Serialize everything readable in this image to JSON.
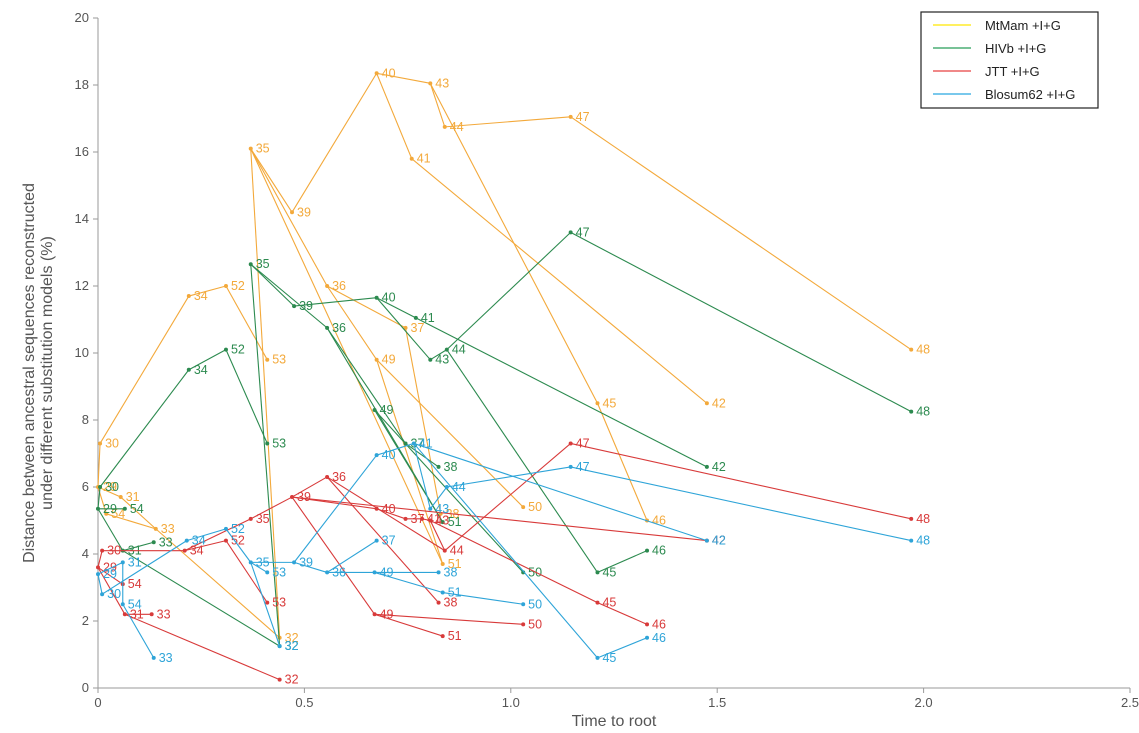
{
  "chart_data": {
    "type": "line",
    "xlabel": "Time to root",
    "ylabel": "Distance between ancestral sequences reconstructed\nunder different substitution models (%)",
    "xlim": [
      0,
      2.5
    ],
    "ylim": [
      0,
      20
    ],
    "xticks": [
      0,
      0.5,
      1.0,
      1.5,
      2.0,
      2.5
    ],
    "xtick_labels": [
      "0",
      "0.5",
      "1.0",
      "1.5",
      "2.0",
      "2.5"
    ],
    "yticks": [
      0,
      2,
      4,
      6,
      8,
      10,
      12,
      14,
      16,
      18,
      20
    ],
    "ytick_labels": [
      "0",
      "2",
      "4",
      "6",
      "8",
      "10",
      "12",
      "14",
      "16",
      "18",
      "20"
    ],
    "grid": false,
    "legend_position": "top-right",
    "series": [
      {
        "name": "MtMam +I+G",
        "legend_color": "#ffe600",
        "color": "#f3a93b",
        "points": [
          {
            "label": "29",
            "x": 0.0,
            "y": 6.0
          },
          {
            "label": "30",
            "x": 0.005,
            "y": 7.3
          },
          {
            "label": "31",
            "x": 0.055,
            "y": 5.7
          },
          {
            "label": "54",
            "x": 0.02,
            "y": 5.2
          },
          {
            "label": "33",
            "x": 0.14,
            "y": 4.75
          },
          {
            "label": "32",
            "x": 0.44,
            "y": 1.5
          },
          {
            "label": "34",
            "x": 0.22,
            "y": 11.7
          },
          {
            "label": "52",
            "x": 0.31,
            "y": 12.0
          },
          {
            "label": "53",
            "x": 0.41,
            "y": 9.8
          },
          {
            "label": "35",
            "x": 0.37,
            "y": 16.1
          },
          {
            "label": "39",
            "x": 0.47,
            "y": 14.2
          },
          {
            "label": "40",
            "x": 0.675,
            "y": 18.35
          },
          {
            "label": "43",
            "x": 0.805,
            "y": 18.05
          },
          {
            "label": "41",
            "x": 0.76,
            "y": 15.8
          },
          {
            "label": "44",
            "x": 0.84,
            "y": 16.75
          },
          {
            "label": "47",
            "x": 1.145,
            "y": 17.05
          },
          {
            "label": "48",
            "x": 1.97,
            "y": 10.1
          },
          {
            "label": "36",
            "x": 0.555,
            "y": 12.0
          },
          {
            "label": "37",
            "x": 0.745,
            "y": 10.75
          },
          {
            "label": "38",
            "x": 0.83,
            "y": 5.2
          },
          {
            "label": "49",
            "x": 0.675,
            "y": 9.8
          },
          {
            "label": "50",
            "x": 1.03,
            "y": 5.4
          },
          {
            "label": "51",
            "x": 0.835,
            "y": 3.7
          },
          {
            "label": "42",
            "x": 1.475,
            "y": 8.5
          },
          {
            "label": "45",
            "x": 1.21,
            "y": 8.5
          },
          {
            "label": "46",
            "x": 1.33,
            "y": 5.0
          }
        ],
        "edges": [
          [
            "29",
            "30"
          ],
          [
            "29",
            "31"
          ],
          [
            "29",
            "54"
          ],
          [
            "54",
            "33"
          ],
          [
            "31",
            "33"
          ],
          [
            "33",
            "32"
          ],
          [
            "30",
            "34"
          ],
          [
            "34",
            "52"
          ],
          [
            "52",
            "53"
          ],
          [
            "35",
            "32"
          ],
          [
            "35",
            "39"
          ],
          [
            "39",
            "40"
          ],
          [
            "40",
            "43"
          ],
          [
            "40",
            "41"
          ],
          [
            "43",
            "44"
          ],
          [
            "44",
            "47"
          ],
          [
            "47",
            "48"
          ],
          [
            "35",
            "36"
          ],
          [
            "36",
            "37"
          ],
          [
            "37",
            "38"
          ],
          [
            "49",
            "50"
          ],
          [
            "49",
            "51"
          ],
          [
            "41",
            "42"
          ],
          [
            "43",
            "45"
          ],
          [
            "45",
            "46"
          ],
          [
            "35",
            "51"
          ],
          [
            "36",
            "49"
          ]
        ]
      },
      {
        "name": "HIVb +I+G",
        "legend_color": "#279e59",
        "color": "#2c8a4f",
        "points": [
          {
            "label": "29",
            "x": 0.0,
            "y": 5.35
          },
          {
            "label": "30",
            "x": 0.005,
            "y": 6.0
          },
          {
            "label": "54",
            "x": 0.065,
            "y": 5.35
          },
          {
            "label": "31",
            "x": 0.06,
            "y": 4.1
          },
          {
            "label": "33",
            "x": 0.135,
            "y": 4.35
          },
          {
            "label": "32",
            "x": 0.44,
            "y": 1.25
          },
          {
            "label": "34",
            "x": 0.22,
            "y": 9.5
          },
          {
            "label": "52",
            "x": 0.31,
            "y": 10.1
          },
          {
            "label": "53",
            "x": 0.41,
            "y": 7.3
          },
          {
            "label": "35",
            "x": 0.37,
            "y": 12.65
          },
          {
            "label": "39",
            "x": 0.475,
            "y": 11.4
          },
          {
            "label": "40",
            "x": 0.675,
            "y": 11.65
          },
          {
            "label": "41",
            "x": 0.77,
            "y": 11.05
          },
          {
            "label": "43",
            "x": 0.805,
            "y": 9.8
          },
          {
            "label": "44",
            "x": 0.845,
            "y": 10.1
          },
          {
            "label": "47",
            "x": 1.145,
            "y": 13.6
          },
          {
            "label": "48",
            "x": 1.97,
            "y": 8.25
          },
          {
            "label": "36",
            "x": 0.555,
            "y": 10.75
          },
          {
            "label": "37",
            "x": 0.745,
            "y": 7.3
          },
          {
            "label": "38",
            "x": 0.825,
            "y": 6.6
          },
          {
            "label": "49",
            "x": 0.67,
            "y": 8.3
          },
          {
            "label": "51",
            "x": 0.835,
            "y": 4.95
          },
          {
            "label": "50",
            "x": 1.03,
            "y": 3.45
          },
          {
            "label": "42",
            "x": 1.475,
            "y": 6.6
          },
          {
            "label": "45",
            "x": 1.21,
            "y": 3.45
          },
          {
            "label": "46",
            "x": 1.33,
            "y": 4.1
          }
        ],
        "edges": [
          [
            "29",
            "30"
          ],
          [
            "29",
            "54"
          ],
          [
            "29",
            "31"
          ],
          [
            "31",
            "33"
          ],
          [
            "31",
            "32"
          ],
          [
            "30",
            "34"
          ],
          [
            "34",
            "52"
          ],
          [
            "52",
            "53"
          ],
          [
            "35",
            "32"
          ],
          [
            "35",
            "39"
          ],
          [
            "39",
            "40"
          ],
          [
            "40",
            "41"
          ],
          [
            "41",
            "42"
          ],
          [
            "40",
            "43"
          ],
          [
            "43",
            "44"
          ],
          [
            "44",
            "47"
          ],
          [
            "47",
            "48"
          ],
          [
            "35",
            "36"
          ],
          [
            "36",
            "37"
          ],
          [
            "37",
            "38"
          ],
          [
            "49",
            "50"
          ],
          [
            "49",
            "51"
          ],
          [
            "44",
            "45"
          ],
          [
            "45",
            "46"
          ],
          [
            "36",
            "51"
          ]
        ]
      },
      {
        "name": "JTT +I+G",
        "legend_color": "#e84040",
        "color": "#d83a3a",
        "points": [
          {
            "label": "29",
            "x": 0.0,
            "y": 3.6
          },
          {
            "label": "30",
            "x": 0.01,
            "y": 4.1
          },
          {
            "label": "54",
            "x": 0.06,
            "y": 3.1
          },
          {
            "label": "31",
            "x": 0.065,
            "y": 2.2
          },
          {
            "label": "33",
            "x": 0.13,
            "y": 2.2
          },
          {
            "label": "32",
            "x": 0.44,
            "y": 0.25
          },
          {
            "label": "34",
            "x": 0.21,
            "y": 4.1
          },
          {
            "label": "52",
            "x": 0.31,
            "y": 4.4
          },
          {
            "label": "53",
            "x": 0.41,
            "y": 2.55
          },
          {
            "label": "35",
            "x": 0.37,
            "y": 5.05
          },
          {
            "label": "39",
            "x": 0.47,
            "y": 5.7
          },
          {
            "label": "40",
            "x": 0.675,
            "y": 5.35
          },
          {
            "label": "37",
            "x": 0.745,
            "y": 5.05
          },
          {
            "label": "41",
            "x": 0.785,
            "y": 5.05
          },
          {
            "label": "43",
            "x": 0.805,
            "y": 5.0
          },
          {
            "label": "44",
            "x": 0.84,
            "y": 4.1
          },
          {
            "label": "47",
            "x": 1.145,
            "y": 7.3
          },
          {
            "label": "48",
            "x": 1.97,
            "y": 5.05
          },
          {
            "label": "42",
            "x": 1.475,
            "y": 4.4
          },
          {
            "label": "36",
            "x": 0.555,
            "y": 6.3
          },
          {
            "label": "38",
            "x": 0.825,
            "y": 2.55
          },
          {
            "label": "49",
            "x": 0.67,
            "y": 2.2
          },
          {
            "label": "50",
            "x": 1.03,
            "y": 1.9
          },
          {
            "label": "51",
            "x": 0.835,
            "y": 1.55
          },
          {
            "label": "45",
            "x": 1.21,
            "y": 2.55
          },
          {
            "label": "46",
            "x": 1.33,
            "y": 1.9
          }
        ],
        "edges": [
          [
            "29",
            "30"
          ],
          [
            "29",
            "54"
          ],
          [
            "29",
            "31"
          ],
          [
            "31",
            "33"
          ],
          [
            "31",
            "32"
          ],
          [
            "30",
            "34"
          ],
          [
            "34",
            "52"
          ],
          [
            "52",
            "53"
          ],
          [
            "34",
            "35"
          ],
          [
            "35",
            "39"
          ],
          [
            "39",
            "40"
          ],
          [
            "40",
            "37"
          ],
          [
            "37",
            "41"
          ],
          [
            "41",
            "43"
          ],
          [
            "43",
            "44"
          ],
          [
            "44",
            "47"
          ],
          [
            "47",
            "48"
          ],
          [
            "39",
            "42"
          ],
          [
            "39",
            "36"
          ],
          [
            "36",
            "38"
          ],
          [
            "39",
            "49"
          ],
          [
            "49",
            "50"
          ],
          [
            "49",
            "51"
          ],
          [
            "43",
            "45"
          ],
          [
            "45",
            "46"
          ],
          [
            "36",
            "44"
          ]
        ]
      },
      {
        "name": "Blosum62 +I+G",
        "legend_color": "#29a8e0",
        "color": "#2ea4d8",
        "points": [
          {
            "label": "29",
            "x": 0.0,
            "y": 3.4
          },
          {
            "label": "30",
            "x": 0.01,
            "y": 2.8
          },
          {
            "label": "31",
            "x": 0.06,
            "y": 3.75
          },
          {
            "label": "54",
            "x": 0.06,
            "y": 2.5
          },
          {
            "label": "33",
            "x": 0.135,
            "y": 0.9
          },
          {
            "label": "32",
            "x": 0.44,
            "y": 1.25
          },
          {
            "label": "34",
            "x": 0.215,
            "y": 4.4
          },
          {
            "label": "52",
            "x": 0.31,
            "y": 4.75
          },
          {
            "label": "35",
            "x": 0.37,
            "y": 3.75
          },
          {
            "label": "53",
            "x": 0.41,
            "y": 3.45
          },
          {
            "label": "39",
            "x": 0.475,
            "y": 3.75
          },
          {
            "label": "36",
            "x": 0.555,
            "y": 3.45
          },
          {
            "label": "37",
            "x": 0.675,
            "y": 4.4
          },
          {
            "label": "40",
            "x": 0.675,
            "y": 6.95
          },
          {
            "label": "41",
            "x": 0.765,
            "y": 7.3
          },
          {
            "label": "43",
            "x": 0.805,
            "y": 5.35
          },
          {
            "label": "44",
            "x": 0.845,
            "y": 6.0
          },
          {
            "label": "47",
            "x": 1.145,
            "y": 6.6
          },
          {
            "label": "48",
            "x": 1.97,
            "y": 4.4
          },
          {
            "label": "42",
            "x": 1.475,
            "y": 4.4
          },
          {
            "label": "49",
            "x": 0.67,
            "y": 3.45
          },
          {
            "label": "38",
            "x": 0.825,
            "y": 3.45
          },
          {
            "label": "51",
            "x": 0.835,
            "y": 2.85
          },
          {
            "label": "50",
            "x": 1.03,
            "y": 2.5
          },
          {
            "label": "45",
            "x": 1.21,
            "y": 0.9
          },
          {
            "label": "46",
            "x": 1.33,
            "y": 1.5
          }
        ],
        "edges": [
          [
            "29",
            "30"
          ],
          [
            "29",
            "31"
          ],
          [
            "31",
            "54"
          ],
          [
            "54",
            "33"
          ],
          [
            "30",
            "34"
          ],
          [
            "34",
            "52"
          ],
          [
            "52",
            "35"
          ],
          [
            "35",
            "53"
          ],
          [
            "35",
            "32"
          ],
          [
            "35",
            "39"
          ],
          [
            "39",
            "40"
          ],
          [
            "40",
            "41"
          ],
          [
            "41",
            "43"
          ],
          [
            "43",
            "44"
          ],
          [
            "44",
            "47"
          ],
          [
            "47",
            "48"
          ],
          [
            "41",
            "42"
          ],
          [
            "39",
            "36"
          ],
          [
            "36",
            "37"
          ],
          [
            "36",
            "49"
          ],
          [
            "49",
            "38"
          ],
          [
            "49",
            "51"
          ],
          [
            "51",
            "50"
          ],
          [
            "41",
            "45"
          ],
          [
            "45",
            "46"
          ]
        ]
      }
    ],
    "label_offsets_note": ""
  }
}
